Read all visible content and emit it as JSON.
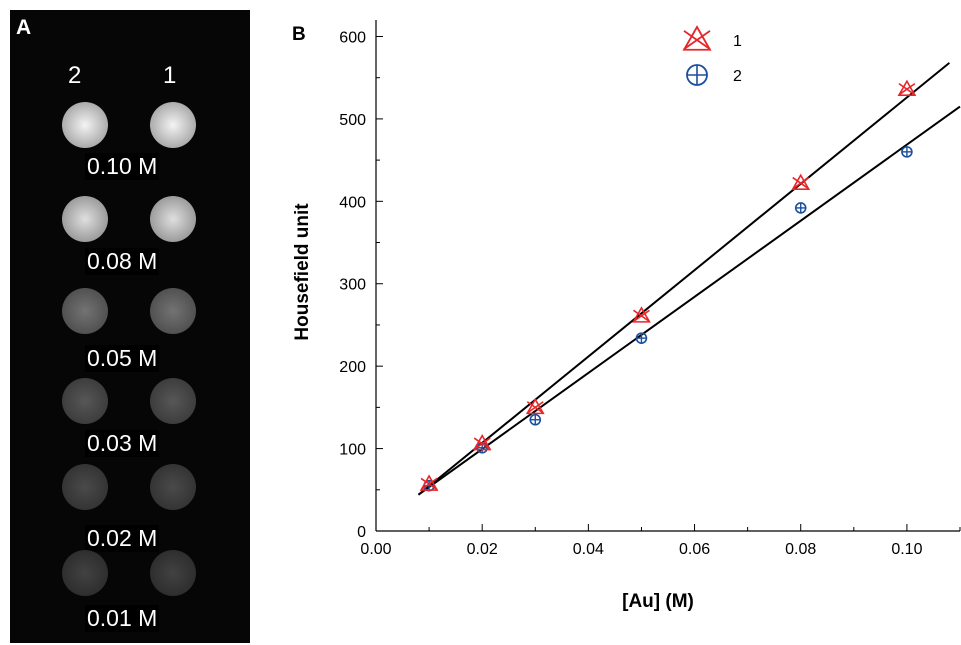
{
  "panel_a": {
    "letter": "A",
    "column_labels": [
      "2",
      "1"
    ],
    "rows": [
      {
        "label": "0.10 M",
        "brightness": 0.95
      },
      {
        "label": "0.08 M",
        "brightness": 0.85
      },
      {
        "label": "0.05 M",
        "brightness": 0.35
      },
      {
        "label": "0.03 M",
        "brightness": 0.22
      },
      {
        "label": "0.02 M",
        "brightness": 0.16
      },
      {
        "label": "0.01 M",
        "brightness": 0.12
      }
    ]
  },
  "panel_b": {
    "letter": "B"
  },
  "chart_data": {
    "type": "scatter",
    "xlabel": "[Au] (M)",
    "ylabel": "Housefield unit",
    "xlim": [
      0,
      0.11
    ],
    "ylim": [
      0,
      620
    ],
    "x_ticks": [
      "0.00",
      "0.02",
      "0.04",
      "0.06",
      "0.08",
      "0.10"
    ],
    "y_ticks": [
      "0",
      "100",
      "200",
      "300",
      "400",
      "500",
      "600"
    ],
    "legend_position": "top-center",
    "series": [
      {
        "name": "1",
        "color": "#e8262a",
        "marker": "triangle-cross",
        "x": [
          0.01,
          0.02,
          0.03,
          0.05,
          0.08,
          0.1
        ],
        "y": [
          57,
          106,
          150,
          261,
          422,
          536
        ],
        "fit": {
          "x_from": 0.008,
          "x_to": 0.108,
          "y_from": 44,
          "y_to": 568
        }
      },
      {
        "name": "2",
        "color": "#1c4fa0",
        "marker": "circle-plus",
        "x": [
          0.01,
          0.02,
          0.03,
          0.05,
          0.08,
          0.1
        ],
        "y": [
          55,
          101,
          135,
          234,
          392,
          460
        ],
        "fit": {
          "x_from": 0.008,
          "x_to": 0.11,
          "y_from": 44,
          "y_to": 515
        }
      }
    ]
  }
}
